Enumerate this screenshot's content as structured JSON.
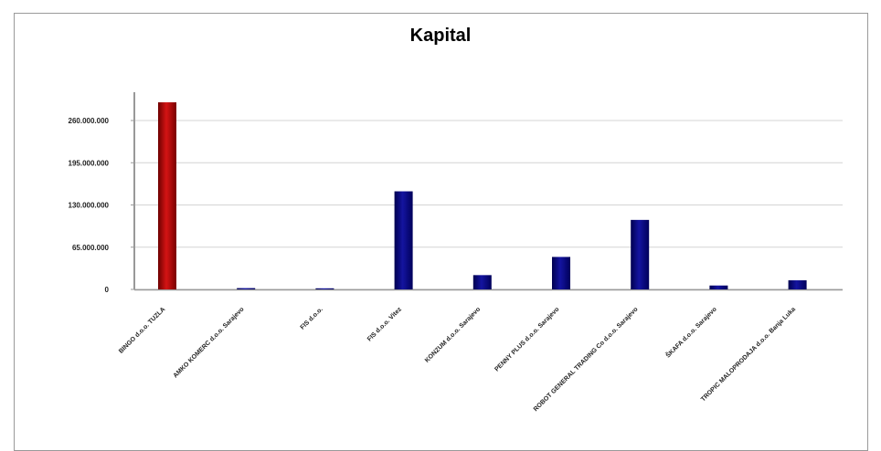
{
  "chart_data": {
    "type": "bar",
    "title": "Kapital",
    "xlabel": "",
    "ylabel": "",
    "ylim": [
      0,
      300000000
    ],
    "yticks": [
      0,
      65000000,
      130000000,
      195000000,
      260000000
    ],
    "ytick_labels": [
      "0",
      "65.000.000",
      "130.000.000",
      "195.000.000",
      "260.000.000"
    ],
    "categories": [
      "BINGO d.o.o. TUZLA",
      "AMKO KOMERC d.o.o. Sarajevo",
      "FIS d.o.o.",
      "FIS d.o.o. Vitez",
      "KONZUM d.o.o. Sarajevo",
      "PENNY PLUS d.o.o. Sarajevo",
      "ROBOT GENERAL TRADING Co d.o.o. Sarajevo",
      "ŠKAFA d.o.o. Sarajevo",
      "TROPIC MALOPRODAJA d.o.o. Banja Luka"
    ],
    "values": [
      288000000,
      2000000,
      1000000,
      151000000,
      22000000,
      50000000,
      107000000,
      6000000,
      14000000
    ],
    "highlight_index": 0,
    "grid": true,
    "colors": {
      "highlight": "#b50a0a",
      "bar": "#0a0a80",
      "grid": "#d4d4d4",
      "axis": "#999999"
    }
  }
}
